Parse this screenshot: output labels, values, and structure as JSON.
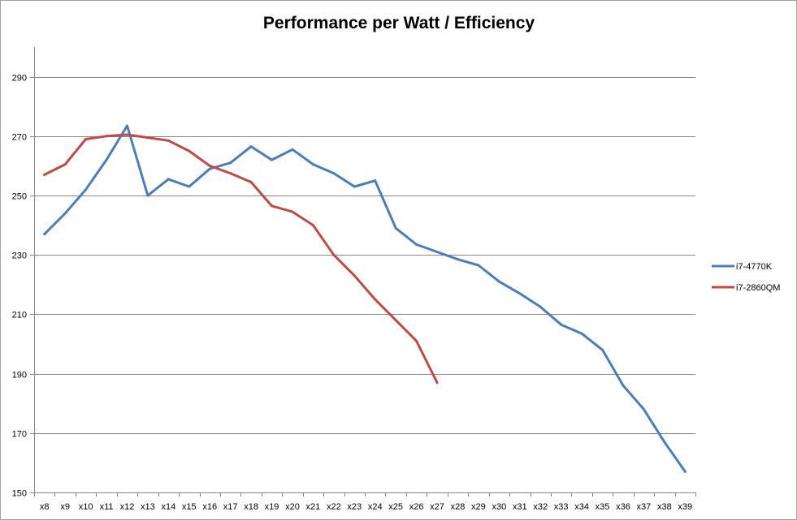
{
  "chart_data": {
    "type": "line",
    "title": "Performance per Watt / Efficiency",
    "xlabel": "",
    "ylabel": "",
    "ylim": [
      150,
      300
    ],
    "y_ticks": [
      150,
      170,
      190,
      210,
      230,
      250,
      270,
      290
    ],
    "grid": "horizontal",
    "legend_position": "right",
    "categories": [
      "x8",
      "x9",
      "x10",
      "x11",
      "x12",
      "x13",
      "x14",
      "x15",
      "x16",
      "x17",
      "x18",
      "x19",
      "x20",
      "x21",
      "x22",
      "x23",
      "x24",
      "x25",
      "x26",
      "x27",
      "x28",
      "x29",
      "x30",
      "x31",
      "x32",
      "x33",
      "x34",
      "x35",
      "x36",
      "x37",
      "x38",
      "x39"
    ],
    "series": [
      {
        "name": "i7-4770K",
        "color": "#4a7ebb",
        "values": [
          237,
          244,
          252,
          262,
          273.5,
          250,
          255.5,
          253,
          259,
          261,
          266.5,
          262,
          265.5,
          260.5,
          257.5,
          253,
          255,
          239,
          233.5,
          231,
          228.5,
          226.5,
          221,
          217,
          212.5,
          206.5,
          203.5,
          198,
          186,
          178,
          167,
          157
        ]
      },
      {
        "name": "i7-2860QM",
        "color": "#be4b48",
        "values": [
          257,
          260.5,
          269,
          270,
          270.5,
          269.5,
          268.5,
          265,
          260,
          257.5,
          254.5,
          246.5,
          244.5,
          240,
          230,
          223,
          215,
          208,
          201,
          187,
          null,
          null,
          null,
          null,
          null,
          null,
          null,
          null,
          null,
          null,
          null,
          null
        ]
      }
    ]
  }
}
